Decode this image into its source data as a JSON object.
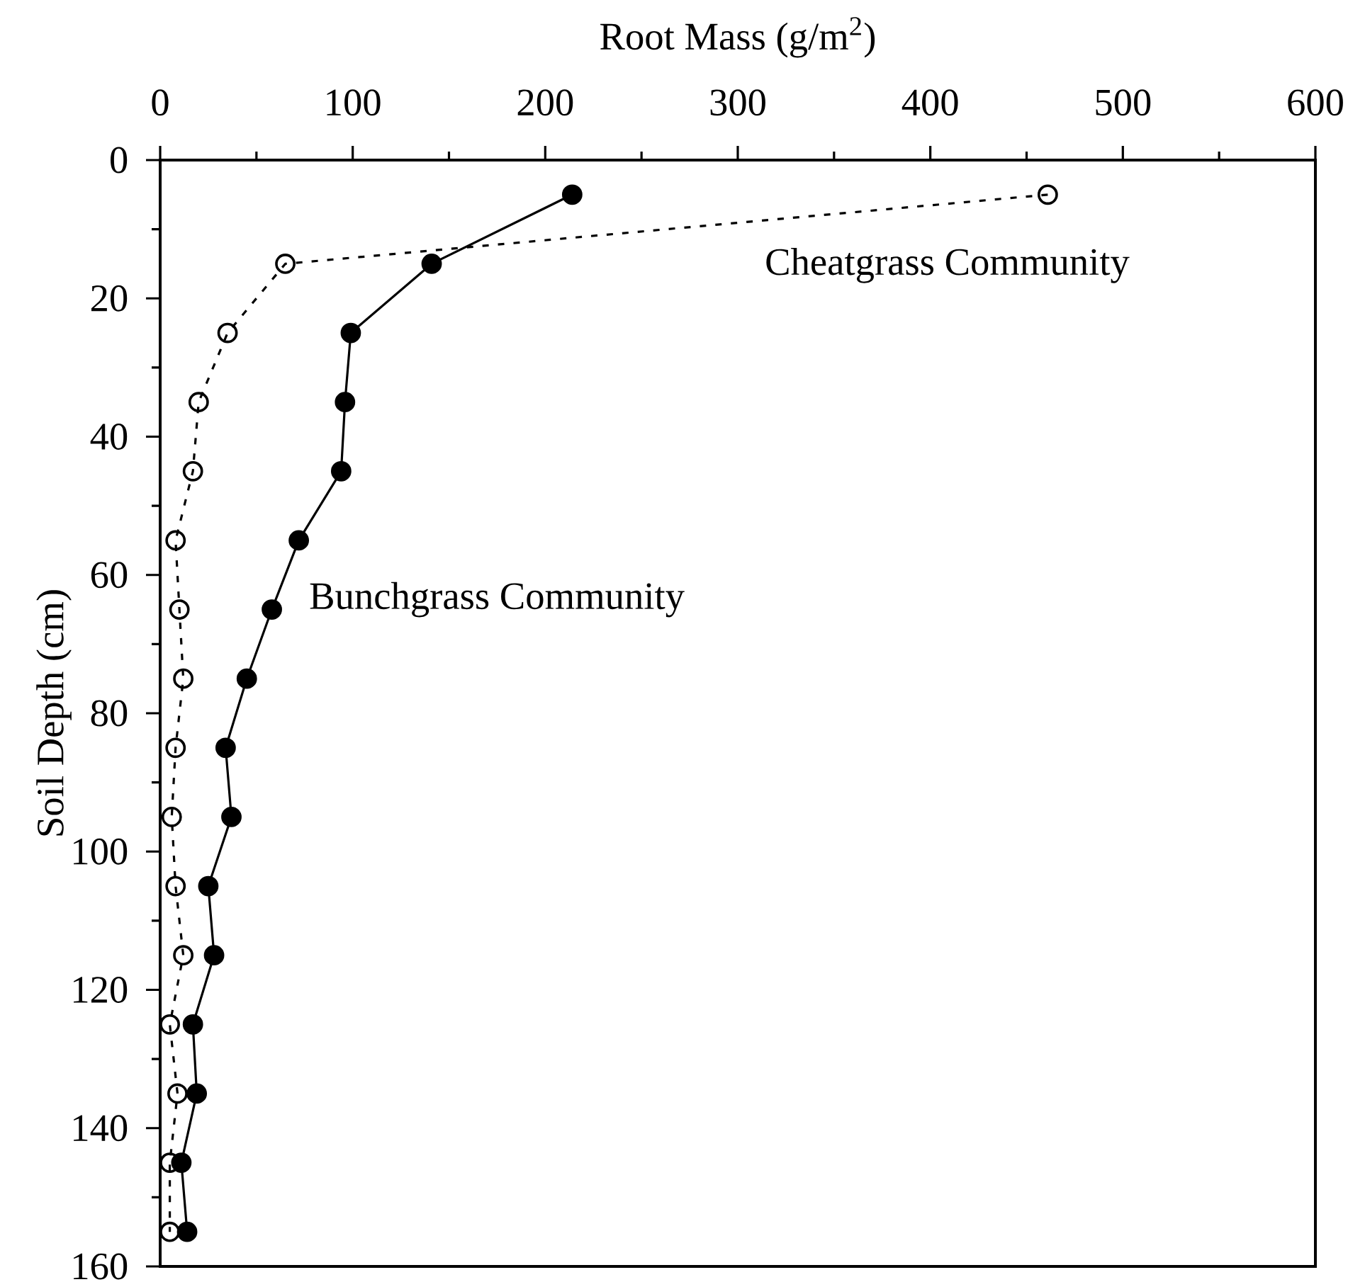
{
  "chart_data": {
    "type": "line",
    "xlabel": "Root Mass (g/m$^{2}$)",
    "ylabel": "Soil Depth (cm)",
    "xlim": [
      0,
      600
    ],
    "ylim": [
      160,
      0
    ],
    "xticks": [
      0,
      {
        "value": 50,
        "label": null
      },
      100,
      {
        "value": 150,
        "label": null
      },
      200,
      {
        "value": 250,
        "label": null
      },
      300,
      {
        "value": 350,
        "label": null
      },
      400,
      {
        "value": 450,
        "label": null
      },
      500,
      {
        "value": 550,
        "label": null
      },
      600
    ],
    "yticks": [
      0,
      {
        "value": 10,
        "label": null
      },
      20,
      {
        "value": 30,
        "label": null
      },
      40,
      {
        "value": 50,
        "label": null
      },
      60,
      {
        "value": 70,
        "label": null
      },
      80,
      {
        "value": 90,
        "label": null
      },
      100,
      {
        "value": 110,
        "label": null
      },
      120,
      {
        "value": 130,
        "label": null
      },
      140,
      {
        "value": 150,
        "label": null
      },
      160
    ],
    "marker": "circle",
    "series": [
      {
        "name": "Bunchgrass Community",
        "color": "#000000",
        "line_style": "solid",
        "x": [
          214,
          141,
          99,
          96,
          94,
          72,
          58,
          45,
          34,
          37,
          25,
          28,
          17,
          19,
          11,
          14
        ],
        "values": [
          5,
          15,
          25,
          35,
          45,
          55,
          65,
          75,
          85,
          95,
          105,
          115,
          125,
          135,
          145,
          155
        ]
      },
      {
        "name": "Cheatgrass Community",
        "color": "#000000",
        "line_style": "dotted",
        "x": [
          461,
          65,
          35,
          20,
          17,
          8,
          10,
          12,
          8,
          6,
          8,
          12,
          5,
          9,
          5,
          5
        ],
        "values": [
          5,
          15,
          25,
          35,
          45,
          55,
          65,
          75,
          85,
          95,
          105,
          115,
          125,
          135,
          145,
          155
        ]
      }
    ]
  }
}
